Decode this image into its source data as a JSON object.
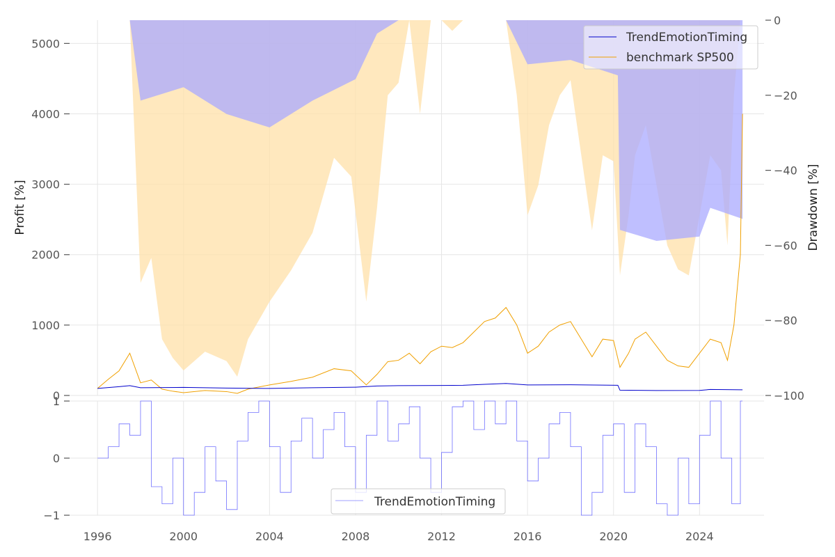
{
  "chart_data": [
    {
      "type": "line",
      "panel": "top",
      "title": "",
      "xlabel": "",
      "ylabel": "Profit [%]",
      "y2label": "Drawdown [%]",
      "xlim": [
        1994.7,
        2027.0
      ],
      "ylim": [
        0,
        5330
      ],
      "y2lim": [
        -100,
        0
      ],
      "xticks": [
        "1996",
        "2000",
        "2004",
        "2008",
        "2012",
        "2016",
        "2020",
        "2024"
      ],
      "yticks": [
        "0",
        "1000",
        "2000",
        "3000",
        "4000",
        "5000"
      ],
      "y2ticks": [
        "0",
        "−20",
        "−40",
        "−60",
        "−80",
        "−100"
      ],
      "grid": true,
      "legend_position": "top-right",
      "colors": {
        "timing_line": "#0000cc",
        "benchmark_line": "#f0a000",
        "timing_drawdown_fill": "#aaaaff",
        "benchmark_drawdown_fill": "#ffe0a8",
        "overlap_fill": "#c4aeb0",
        "grid": "#e6e6e6"
      },
      "series": [
        {
          "name": "TrendEmotionTiming",
          "x": [
            1996.0,
            1997.0,
            1997.5,
            1998.0,
            2000.0,
            2002.0,
            2004.0,
            2006.0,
            2008.0,
            2009.0,
            2010.0,
            2012.0,
            2013.0,
            2014.0,
            2015.0,
            2016.0,
            2018.0,
            2020.2,
            2020.3,
            2022.0,
            2024.0,
            2024.5,
            2026.0
          ],
          "values": [
            100,
            125,
            140,
            110,
            115,
            105,
            100,
            110,
            118,
            135,
            140,
            142,
            145,
            158,
            170,
            150,
            152,
            145,
            75,
            70,
            72,
            85,
            80
          ]
        },
        {
          "name": "benchmark SP500",
          "x": [
            1996.0,
            1996.5,
            1997.0,
            1997.5,
            1998.0,
            1998.5,
            1999.0,
            1999.5,
            2000.0,
            2001.0,
            2002.0,
            2002.5,
            2003.0,
            2004.0,
            2005.0,
            2006.0,
            2007.0,
            2007.8,
            2008.5,
            2009.0,
            2009.5,
            2010.0,
            2010.5,
            2011.0,
            2011.5,
            2012.0,
            2012.5,
            2013.0,
            2013.5,
            2014.0,
            2014.5,
            2015.0,
            2015.5,
            2016.0,
            2016.5,
            2017.0,
            2017.5,
            2018.0,
            2018.5,
            2019.0,
            2019.5,
            2020.0,
            2020.3,
            2020.7,
            2021.0,
            2021.5,
            2022.0,
            2022.5,
            2023.0,
            2023.5,
            2024.0,
            2024.5,
            2025.0,
            2025.3,
            2025.6,
            2025.9,
            2026.0
          ],
          "values": [
            100,
            230,
            350,
            600,
            180,
            220,
            90,
            60,
            40,
            70,
            55,
            30,
            90,
            150,
            200,
            260,
            380,
            350,
            150,
            300,
            480,
            500,
            600,
            450,
            620,
            700,
            680,
            750,
            900,
            1050,
            1100,
            1250,
            1000,
            600,
            700,
            900,
            1000,
            1050,
            800,
            550,
            800,
            780,
            400,
            600,
            800,
            900,
            700,
            500,
            420,
            400,
            600,
            800,
            750,
            500,
            1000,
            2000,
            4000
          ]
        }
      ]
    },
    {
      "type": "line",
      "panel": "bottom",
      "title": "",
      "xlabel": "",
      "ylabel": "",
      "xlim": [
        1994.7,
        2027.0
      ],
      "ylim": [
        -1,
        1
      ],
      "xticks": [
        "1996",
        "2000",
        "2004",
        "2008",
        "2012",
        "2016",
        "2020",
        "2024"
      ],
      "yticks": [
        "−1",
        "0",
        "1"
      ],
      "grid": true,
      "legend_position": "bottom-center",
      "colors": {
        "line": "#4040ff"
      },
      "series": [
        {
          "name": "TrendEmotionTiming",
          "x": [
            1996.0,
            1996.5,
            1997.0,
            1997.5,
            1998.0,
            1998.5,
            1999.0,
            1999.5,
            2000.0,
            2000.5,
            2001.0,
            2001.5,
            2002.0,
            2002.5,
            2003.0,
            2003.5,
            2004.0,
            2004.5,
            2005.0,
            2005.5,
            2006.0,
            2006.5,
            2007.0,
            2007.5,
            2008.0,
            2008.5,
            2009.0,
            2009.5,
            2010.0,
            2010.5,
            2011.0,
            2011.5,
            2012.0,
            2012.5,
            2013.0,
            2013.5,
            2014.0,
            2014.5,
            2015.0,
            2015.5,
            2016.0,
            2016.5,
            2017.0,
            2017.5,
            2018.0,
            2018.5,
            2019.0,
            2019.5,
            2020.0,
            2020.5,
            2021.0,
            2021.5,
            2022.0,
            2022.5,
            2023.0,
            2023.5,
            2024.0,
            2024.5,
            2025.0,
            2025.5,
            2025.9,
            2026.0
          ],
          "values": [
            0.0,
            0.2,
            0.6,
            0.4,
            1.0,
            -0.5,
            -0.8,
            0.0,
            -1.0,
            -0.6,
            0.2,
            -0.4,
            -0.9,
            0.3,
            0.8,
            1.0,
            0.2,
            -0.6,
            0.3,
            0.7,
            0.0,
            0.5,
            0.8,
            0.2,
            -0.6,
            0.4,
            1.0,
            0.3,
            0.6,
            0.9,
            0.0,
            -0.6,
            0.1,
            0.9,
            1.0,
            0.5,
            1.0,
            0.6,
            1.0,
            0.3,
            -0.4,
            0.0,
            0.6,
            0.8,
            0.2,
            -1.0,
            -0.6,
            0.4,
            0.6,
            -0.6,
            0.6,
            0.2,
            -0.8,
            -1.0,
            0.0,
            -0.8,
            0.4,
            1.0,
            0.0,
            -0.8,
            1.0,
            1.0
          ]
        }
      ]
    }
  ]
}
